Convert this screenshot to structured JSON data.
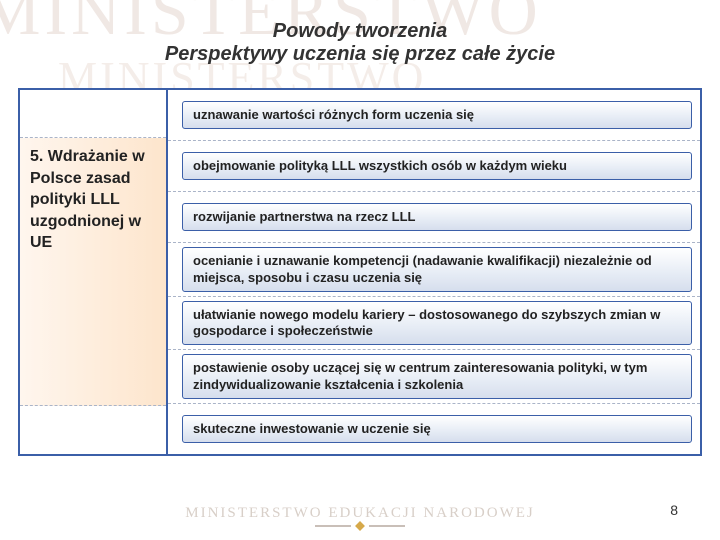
{
  "watermark": {
    "top": "MINISTERSTWO",
    "sub": "MINISTERSTWO"
  },
  "title": {
    "line1": "Powody tworzenia",
    "line2": "Perspektywy uczenia się przez całe życie"
  },
  "left_label": "5. Wdrażanie w Polsce zasad polityki LLL uzgodnionej w UE",
  "rows": [
    "uznawanie wartości różnych form uczenia się",
    "obejmowanie polityką LLL wszystkich osób w każdym wieku",
    "rozwijanie partnerstwa na rzecz LLL",
    "ocenianie i uznawanie kompetencji (nadawanie kwalifikacji) niezależnie od miejsca, sposobu i czasu uczenia się",
    "ułatwianie nowego modelu kariery – dostosowanego do szybszych zmian w gospodarce i społeczeństwie",
    "postawienie osoby uczącej się w centrum zainteresowania polityki, w tym zindywidualizowanie kształcenia i szkolenia",
    "skuteczne inwestowanie w uczenie się"
  ],
  "footer": "MINISTERSTWO EDUKACJI NARODOWEJ",
  "page_number": "8",
  "colors": {
    "border": "#3b5fa8",
    "pill_bg_top": "#ffffff",
    "pill_bg_bottom": "#d6deed",
    "left_grad_start": "#fff6ee",
    "left_grad_end": "#fde5cc",
    "watermark": "#f0e8e4",
    "dashed": "#aab4c8"
  }
}
